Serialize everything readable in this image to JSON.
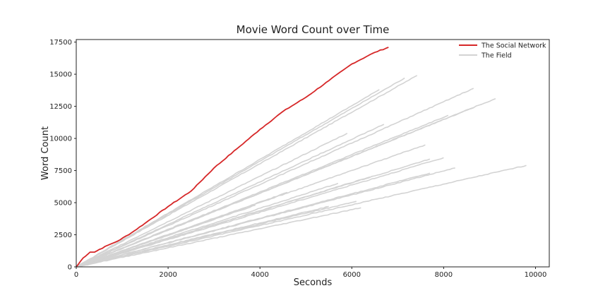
{
  "chart_data": {
    "type": "line",
    "title": "Movie Word Count over Time",
    "xlabel": "Seconds",
    "ylabel": "Word Count",
    "xlim": [
      0,
      10300
    ],
    "ylim": [
      0,
      17700
    ],
    "xticks": [
      0,
      2000,
      4000,
      6000,
      8000,
      10000
    ],
    "yticks": [
      0,
      2500,
      5000,
      7500,
      10000,
      12500,
      15000,
      17500
    ],
    "grid": false,
    "legend_position": "top-right",
    "legend": [
      {
        "label": "The Social Network",
        "color": "#d62728"
      },
      {
        "label": "The Field",
        "color": "#d3d3d3"
      }
    ],
    "highlight_series": {
      "name": "The Social Network",
      "color": "#d62728",
      "x": [
        0,
        150,
        300,
        400,
        500,
        700,
        900,
        1200,
        1500,
        2000,
        2500,
        3000,
        3500,
        4000,
        4500,
        5000,
        5500,
        6000,
        6500,
        6800
      ],
      "y": [
        0,
        700,
        1150,
        1150,
        1350,
        1700,
        2000,
        2650,
        3400,
        4700,
        5900,
        7700,
        9200,
        10700,
        12100,
        13200,
        14500,
        15800,
        16700,
        17100
      ]
    },
    "field_series": [
      {
        "x": [
          0,
          7420
        ],
        "y": [
          0,
          14900
        ]
      },
      {
        "x": [
          0,
          7150
        ],
        "y": [
          0,
          14700
        ]
      },
      {
        "x": [
          0,
          6600
        ],
        "y": [
          0,
          13800
        ]
      },
      {
        "x": [
          0,
          8650
        ],
        "y": [
          0,
          13900
        ]
      },
      {
        "x": [
          0,
          9130
        ],
        "y": [
          0,
          13100
        ]
      },
      {
        "x": [
          0,
          8650
        ],
        "y": [
          0,
          12400
        ]
      },
      {
        "x": [
          0,
          8100
        ],
        "y": [
          0,
          11800
        ]
      },
      {
        "x": [
          0,
          6700
        ],
        "y": [
          0,
          11100
        ]
      },
      {
        "x": [
          0,
          5900
        ],
        "y": [
          0,
          10400
        ]
      },
      {
        "x": [
          0,
          7600
        ],
        "y": [
          0,
          9500
        ]
      },
      {
        "x": [
          0,
          8000
        ],
        "y": [
          0,
          8500
        ]
      },
      {
        "x": [
          0,
          7700
        ],
        "y": [
          0,
          8400
        ]
      },
      {
        "x": [
          0,
          9800
        ],
        "y": [
          0,
          7900
        ]
      },
      {
        "x": [
          0,
          8250
        ],
        "y": [
          0,
          7700
        ]
      },
      {
        "x": [
          0,
          7700
        ],
        "y": [
          0,
          7300
        ]
      },
      {
        "x": [
          0,
          6400
        ],
        "y": [
          0,
          7000
        ]
      },
      {
        "x": [
          0,
          5700
        ],
        "y": [
          0,
          6500
        ]
      },
      {
        "x": [
          0,
          4600
        ],
        "y": [
          0,
          5800
        ]
      },
      {
        "x": [
          0,
          6100
        ],
        "y": [
          0,
          5100
        ]
      },
      {
        "x": [
          0,
          5500
        ],
        "y": [
          0,
          4700
        ]
      },
      {
        "x": [
          0,
          3900
        ],
        "y": [
          0,
          4800
        ]
      },
      {
        "x": [
          0,
          3000
        ],
        "y": [
          0,
          3700
        ]
      },
      {
        "x": [
          0,
          6200
        ],
        "y": [
          0,
          4600
        ]
      }
    ]
  }
}
